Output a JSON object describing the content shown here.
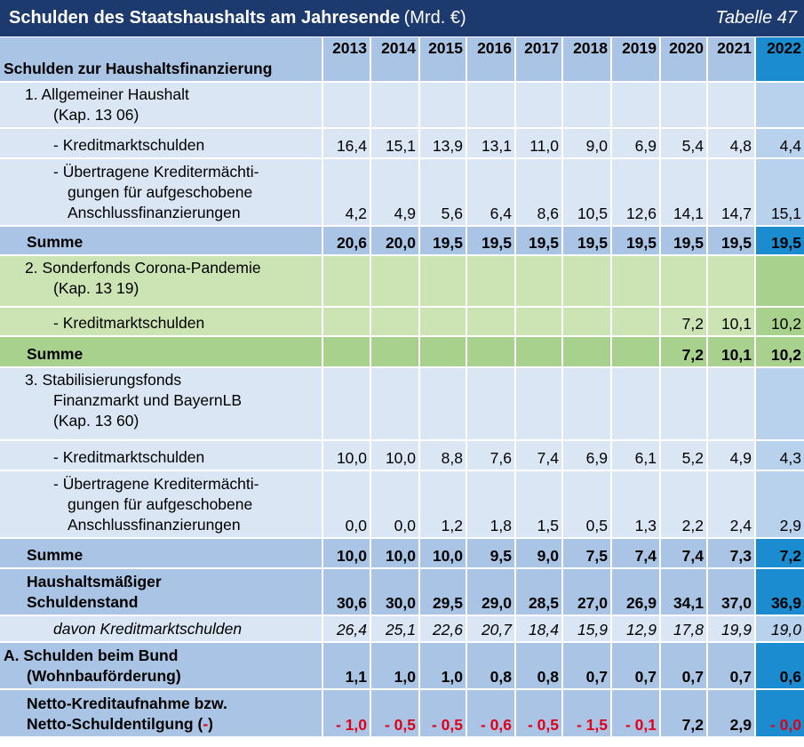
{
  "header": {
    "title": "Schulden des Staatshaushalts am Jahresende",
    "unit": "(Mrd. €)",
    "table_no": "Tabelle 47"
  },
  "colors": {
    "title_bg": "#1c3a6e",
    "blue_header": "#a9c4e4",
    "blue_light": "#dae6f3",
    "highlight": "#1a8ccf",
    "green_light": "#cce4b4",
    "green_sum": "#a9d18e",
    "negative": "#e0001b"
  },
  "years": [
    "2013",
    "2014",
    "2015",
    "2016",
    "2017",
    "2018",
    "2019",
    "2020",
    "2021",
    "2022"
  ],
  "col_header": "Schulden zur Haushaltsfinanzierung",
  "rows": {
    "sec1_title": "1.  Allgemeiner Haushalt",
    "sec1_sub": "(Kap. 13 06)",
    "r1_label": "- Kreditmarktschulden",
    "r1": [
      "16,4",
      "15,1",
      "13,9",
      "13,1",
      "11,0",
      "9,0",
      "6,9",
      "5,4",
      "4,8",
      "4,4"
    ],
    "r2_l1": "- Übertragene Kreditermächti-",
    "r2_l2": "gungen für aufgeschobene",
    "r2_l3": "Anschlussfinanzierungen",
    "r2": [
      "4,2",
      "4,9",
      "5,6",
      "6,4",
      "8,6",
      "10,5",
      "12,6",
      "14,1",
      "14,7",
      "15,1"
    ],
    "sum_label": "Summe",
    "s1": [
      "20,6",
      "20,0",
      "19,5",
      "19,5",
      "19,5",
      "19,5",
      "19,5",
      "19,5",
      "19,5",
      "19,5"
    ],
    "sec2_title": "2.  Sonderfonds Corona-Pandemie",
    "sec2_sub": "(Kap. 13 19)",
    "r3": [
      "",
      "",
      "",
      "",
      "",
      "",
      "",
      "7,2",
      "10,1",
      "10,2"
    ],
    "s2": [
      "",
      "",
      "",
      "",
      "",
      "",
      "",
      "7,2",
      "10,1",
      "10,2"
    ],
    "sec3_l1": "3.  Stabilisierungsfonds",
    "sec3_l2": "Finanzmarkt und BayernLB",
    "sec3_l3": "(Kap. 13 60)",
    "r4": [
      "10,0",
      "10,0",
      "8,8",
      "7,6",
      "7,4",
      "6,9",
      "6,1",
      "5,2",
      "4,9",
      "4,3"
    ],
    "r5": [
      "0,0",
      "0,0",
      "1,2",
      "1,8",
      "1,5",
      "0,5",
      "1,3",
      "2,2",
      "2,4",
      "2,9"
    ],
    "s3": [
      "10,0",
      "10,0",
      "10,0",
      "9,5",
      "9,0",
      "7,5",
      "7,4",
      "7,4",
      "7,3",
      "7,2"
    ],
    "total_l1": "Haushaltsmäßiger",
    "total_l2": "Schuldenstand",
    "total": [
      "30,6",
      "30,0",
      "29,5",
      "29,0",
      "28,5",
      "27,0",
      "26,9",
      "34,1",
      "37,0",
      "36,9"
    ],
    "davon_label": "davon Kreditmarktschulden",
    "davon": [
      "26,4",
      "25,1",
      "22,6",
      "20,7",
      "18,4",
      "15,9",
      "12,9",
      "17,8",
      "19,9",
      "19,0"
    ],
    "bund_l1": "A. Schulden beim Bund",
    "bund_l2": "(Wohnbauförderung)",
    "bund": [
      "1,1",
      "1,0",
      "1,0",
      "0,8",
      "0,8",
      "0,7",
      "0,7",
      "0,7",
      "0,7",
      "0,6"
    ],
    "netto_l1": "Netto-Kreditaufnahme bzw.",
    "netto_l2a": "Netto-Schuldentilgung (",
    "netto_l2b": "-",
    "netto_l2c": ")",
    "netto": [
      "- 1,0",
      "- 0,5",
      "- 0,5",
      "- 0,6",
      "- 0,5",
      "- 1,5",
      "- 0,1",
      "7,2",
      "2,9",
      "- 0,0"
    ]
  }
}
